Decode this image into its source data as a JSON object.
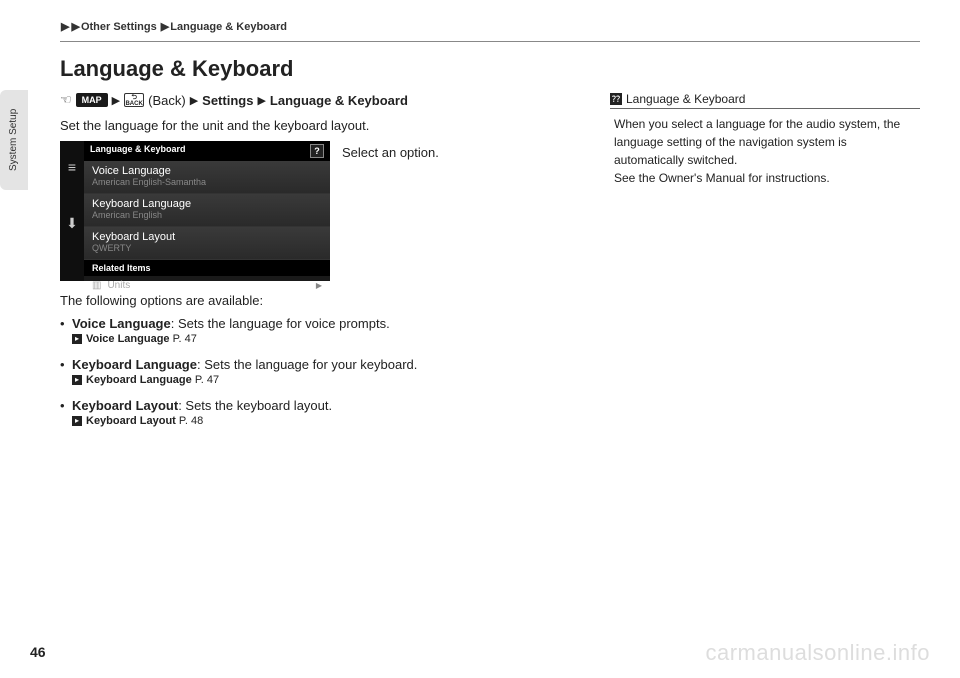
{
  "breadcrumb": {
    "part1": "Other Settings",
    "part2": "Language & Keyboard"
  },
  "sideTab": "System Setup",
  "title": "Language & Keyboard",
  "navPath": {
    "map": "MAP",
    "backLabel": "BACK",
    "backText": "(Back)",
    "settings": "Settings",
    "section": "Language & Keyboard"
  },
  "intro": "Set the language for the unit and the keyboard layout.",
  "instruction": "Select an option.",
  "screenshot": {
    "header": "Language & Keyboard",
    "items": [
      {
        "label": "Voice Language",
        "value": "American English-Samantha"
      },
      {
        "label": "Keyboard Language",
        "value": "American English"
      },
      {
        "label": "Keyboard Layout",
        "value": "QWERTY"
      }
    ],
    "related": "Related Items",
    "units": "Units"
  },
  "available": "The following options are available:",
  "options": [
    {
      "term": "Voice Language",
      "desc": ": Sets the language for voice prompts.",
      "xref": "Voice Language",
      "page": "P. 47"
    },
    {
      "term": "Keyboard Language",
      "desc": ": Sets the language for your keyboard.",
      "xref": "Keyboard Language",
      "page": "P. 47"
    },
    {
      "term": "Keyboard Layout",
      "desc": ": Sets the keyboard layout.",
      "xref": "Keyboard Layout",
      "page": "P. 48"
    }
  ],
  "tip": {
    "header": "Language & Keyboard",
    "body1": "When you select a language for the audio system, the language setting of the navigation system is automatically switched.",
    "body2": "See the Owner's Manual for instructions."
  },
  "pageNum": "46",
  "watermark": "carmanualsonline.info"
}
